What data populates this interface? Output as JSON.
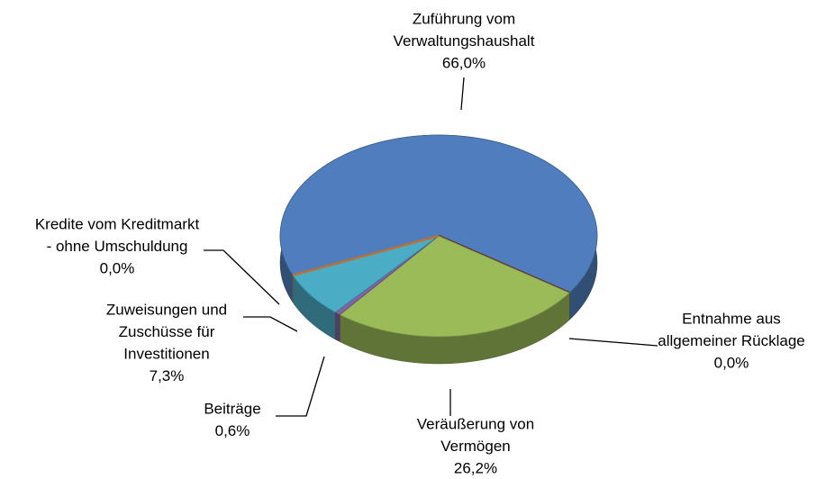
{
  "chart_data": {
    "type": "pie",
    "categories": [
      [
        "Zuführung vom",
        "Verwaltungshaushalt"
      ],
      [
        "Entnahme aus",
        "allgemeiner Rücklage"
      ],
      [
        "Veräußerung von",
        "Vermögen"
      ],
      [
        "Beiträge"
      ],
      [
        "Zuweisungen und",
        "Zuschüsse für",
        "Investitionen"
      ],
      [
        "Kredite vom Kreditmarkt",
        "- ohne Umschuldung"
      ]
    ],
    "values": [
      66.0,
      0.0,
      26.2,
      0.6,
      7.3,
      0.0
    ],
    "value_labels": [
      "66,0%",
      "0,0%",
      "26,2%",
      "0,6%",
      "7,3%",
      "0,0%"
    ],
    "colors": [
      "#4f7dbd",
      "#8b2a2a",
      "#9bbb59",
      "#8064a2",
      "#4bacc6",
      "#f79646"
    ]
  }
}
